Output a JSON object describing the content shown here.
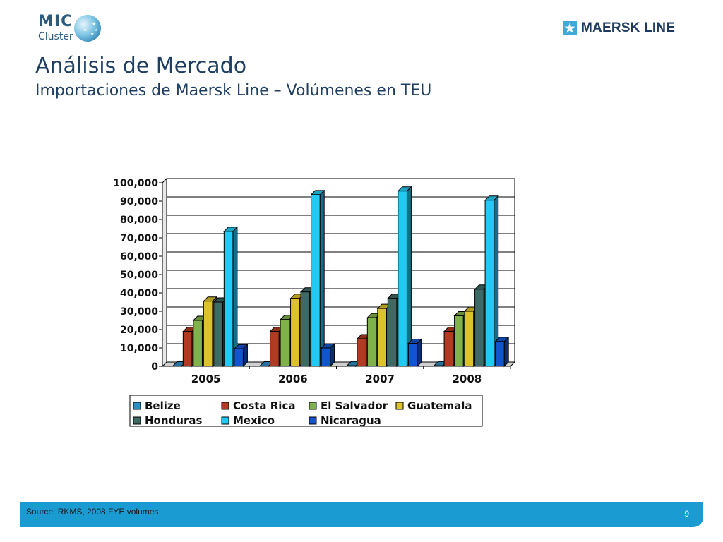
{
  "header": {
    "logo_left_line1": "MIC",
    "logo_left_line2": "Cluster",
    "logo_right": "MAERSK LINE",
    "title": "Análisis de Mercado",
    "subtitle": "Importaciones de Maersk Line – Volúmenes en TEU"
  },
  "footer": {
    "source": "Source: RKMS, 2008 FYE volumes",
    "page_number": "9"
  },
  "colors": {
    "title": "#1e3e62",
    "footer_bar": "#1a9bd1"
  },
  "chart_data": {
    "type": "bar",
    "style": "3d-clustered-column",
    "categories": [
      "2005",
      "2006",
      "2007",
      "2008"
    ],
    "ylim": [
      0,
      100000
    ],
    "yticks": [
      "0",
      "10,000",
      "20,000",
      "30,000",
      "40,000",
      "50,000",
      "60,000",
      "70,000",
      "80,000",
      "90,000",
      "100,000"
    ],
    "grid": true,
    "legend_position": "bottom",
    "series": [
      {
        "name": "Belize",
        "color": "#2e8fc4",
        "values": [
          200,
          200,
          300,
          300
        ]
      },
      {
        "name": "Costa Rica",
        "color": "#b03a22",
        "values": [
          19000,
          19000,
          15000,
          19000
        ]
      },
      {
        "name": "El Salvador",
        "color": "#7fb24a",
        "values": [
          25000,
          25500,
          26500,
          27500
        ]
      },
      {
        "name": "Guatemala",
        "color": "#dcc22c",
        "values": [
          35500,
          37000,
          31500,
          30000
        ]
      },
      {
        "name": "Honduras",
        "color": "#3f6a64",
        "values": [
          35000,
          40500,
          37000,
          42000
        ]
      },
      {
        "name": "Mexico",
        "color": "#22c9f2",
        "values": [
          73500,
          93500,
          95500,
          90500
        ]
      },
      {
        "name": "Nicaragua",
        "color": "#1155cc",
        "values": [
          9500,
          10000,
          12500,
          13500
        ]
      }
    ]
  }
}
